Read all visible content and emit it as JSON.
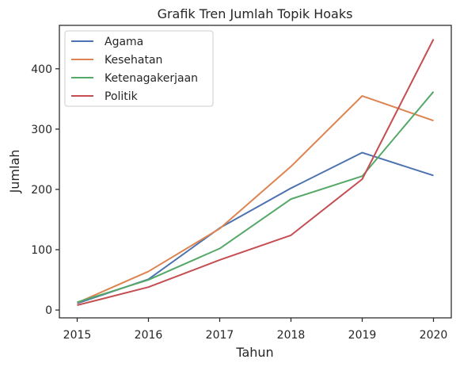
{
  "chart_data": {
    "type": "line",
    "title": "Grafik Tren Jumlah Topik Hoaks",
    "xlabel": "Tahun",
    "ylabel": "Jumlah",
    "x": [
      2015,
      2016,
      2017,
      2018,
      2019,
      2020
    ],
    "x_ticks": [
      "2015",
      "2016",
      "2017",
      "2018",
      "2019",
      "2020"
    ],
    "xlim": [
      2014.75,
      2020.25
    ],
    "y_ticks": [
      0,
      100,
      200,
      300,
      400
    ],
    "ylim": [
      -13,
      472
    ],
    "grid": false,
    "legend_position": "top-left",
    "series": [
      {
        "name": "Agama",
        "color": "#4c72b0",
        "values": [
          11,
          51,
          136,
          202,
          261,
          223
        ]
      },
      {
        "name": "Kesehatan",
        "color": "#dd8452",
        "values": [
          12,
          64,
          135,
          238,
          355,
          314
        ]
      },
      {
        "name": "Ketenagakerjaan",
        "color": "#55a868",
        "values": [
          13,
          50,
          102,
          184,
          222,
          362
        ]
      },
      {
        "name": "Politik",
        "color": "#c44e52",
        "values": [
          8,
          38,
          83,
          124,
          217,
          449
        ]
      }
    ]
  }
}
